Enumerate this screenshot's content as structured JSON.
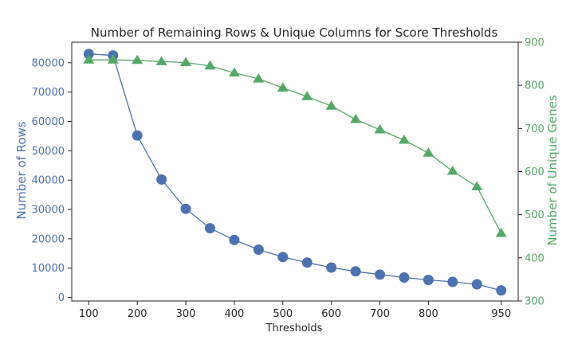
{
  "chart_data": {
    "type": "line",
    "title": "Number of Remaining Rows & Unique Columns for Score Thresholds",
    "xlabel": "Thresholds",
    "ylabel_left": "Number of Rows",
    "ylabel_right": "Number of Unique Genes",
    "x": [
      100,
      150,
      200,
      250,
      300,
      350,
      400,
      450,
      500,
      550,
      600,
      650,
      700,
      750,
      800,
      850,
      900,
      950
    ],
    "xticks": [
      100,
      200,
      300,
      400,
      500,
      600,
      700,
      800,
      950
    ],
    "xlim": [
      65,
      985
    ],
    "ylim_left": [
      -1200,
      87000
    ],
    "yticks_left": [
      0,
      10000,
      20000,
      30000,
      40000,
      50000,
      60000,
      70000,
      80000
    ],
    "ylim_right": [
      300,
      900
    ],
    "yticks_right": [
      300,
      400,
      500,
      600,
      700,
      800,
      900
    ],
    "grid": false,
    "series": [
      {
        "axis": "left",
        "marker": "circle",
        "color": "#4c72b0",
        "values": [
          83000,
          82500,
          55200,
          40200,
          30200,
          23600,
          19600,
          16300,
          13800,
          11900,
          10200,
          8900,
          7800,
          6800,
          6000,
          5300,
          4500,
          2400
        ]
      },
      {
        "axis": "right",
        "marker": "triangle",
        "color": "#55a868",
        "values": [
          859,
          859,
          858,
          855,
          853,
          845,
          829,
          815,
          794,
          774,
          752,
          721,
          697,
          673,
          643,
          601,
          565,
          457
        ]
      }
    ]
  }
}
